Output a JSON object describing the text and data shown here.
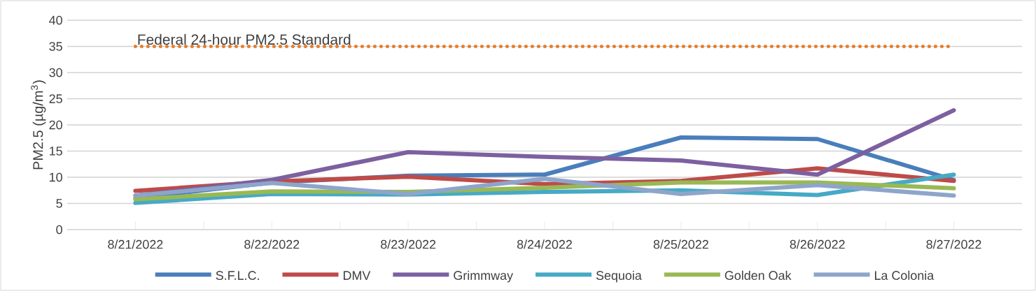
{
  "chart_data": {
    "type": "line",
    "ylabel": "PM2.5 (µg/m$^{3}$)",
    "categories": [
      "8/21/2022",
      "8/22/2022",
      "8/23/2022",
      "8/24/2022",
      "8/25/2022",
      "8/26/2022",
      "8/27/2022"
    ],
    "series": [
      {
        "name": "S.F.L.C.",
        "color": "#4a7ebb",
        "values": [
          6.0,
          9.0,
          10.3,
          10.5,
          17.6,
          17.3,
          9.5
        ]
      },
      {
        "name": "DMV",
        "color": "#be4b48",
        "values": [
          7.4,
          9.2,
          10.1,
          8.7,
          9.3,
          11.7,
          9.3
        ]
      },
      {
        "name": "Grimmway",
        "color": "#7d60a0",
        "values": [
          6.5,
          9.5,
          14.8,
          13.9,
          13.2,
          10.5,
          22.8
        ]
      },
      {
        "name": "Sequoia",
        "color": "#46aac5",
        "values": [
          5.1,
          6.8,
          6.7,
          7.2,
          7.5,
          6.6,
          10.5
        ]
      },
      {
        "name": "Golden Oak",
        "color": "#98b954",
        "values": [
          5.8,
          7.3,
          7.2,
          8.0,
          9.0,
          9.0,
          7.9
        ]
      },
      {
        "name": "La Colonia",
        "color": "#8ea5cb",
        "values": [
          6.5,
          8.9,
          6.8,
          9.7,
          6.8,
          8.5,
          6.5
        ]
      }
    ],
    "ylim": [
      0,
      40
    ],
    "yticks": [
      0,
      5,
      10,
      15,
      20,
      25,
      30,
      35,
      40
    ],
    "grid": "y",
    "legend": "bottom",
    "marker": "none",
    "line_style": "solid",
    "ref_lines": [
      {
        "axis": "y",
        "value": 35,
        "label": "Federal 24-hour PM2.5 Standard",
        "color": "#e87e2b",
        "line_style": "dotted"
      }
    ]
  }
}
